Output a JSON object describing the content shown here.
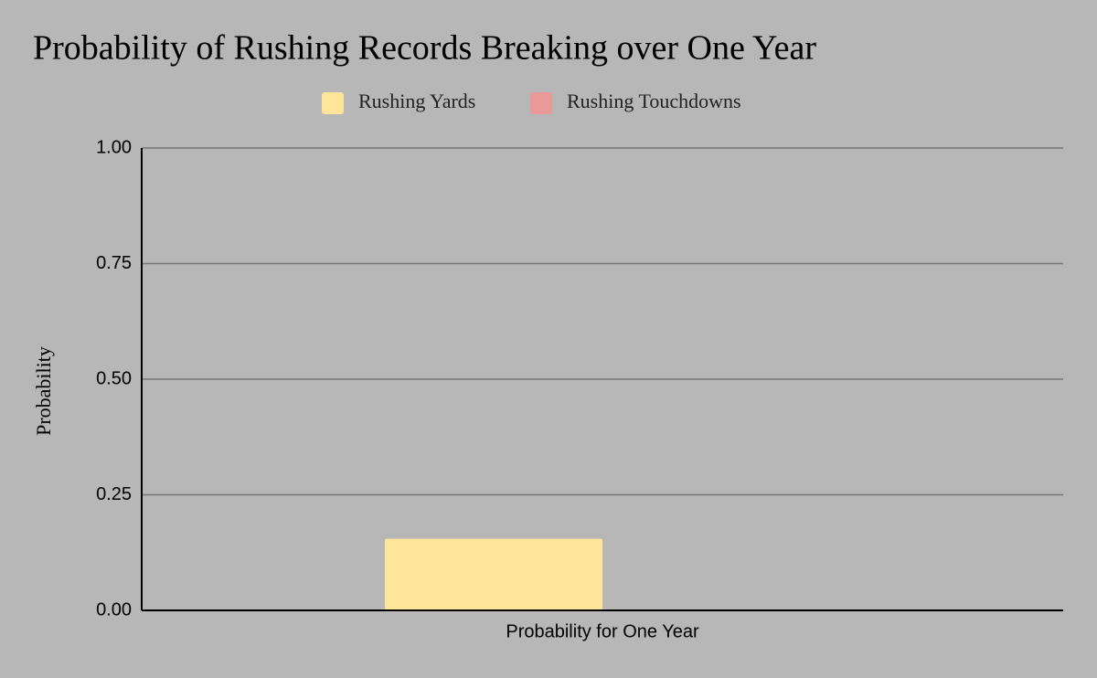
{
  "chart_data": {
    "type": "bar",
    "title": "Probability of Rushing Records Breaking over One Year",
    "y_label": "Probability",
    "categories": [
      "Probability for One Year"
    ],
    "series": [
      {
        "name": "Rushing Yards",
        "color": "#ffe599",
        "values": [
          0.155
        ]
      },
      {
        "name": "Rushing Touchdowns",
        "color": "#ea9999",
        "values": [
          0
        ]
      }
    ],
    "ylim": [
      0,
      1
    ],
    "yticks": [
      {
        "value": 0,
        "label": "0.00"
      },
      0.25,
      {
        "value": 0.5,
        "label": "0.50"
      },
      0.75,
      {
        "value": 1,
        "label": "1.00"
      }
    ],
    "grid": true,
    "legend": "top"
  }
}
